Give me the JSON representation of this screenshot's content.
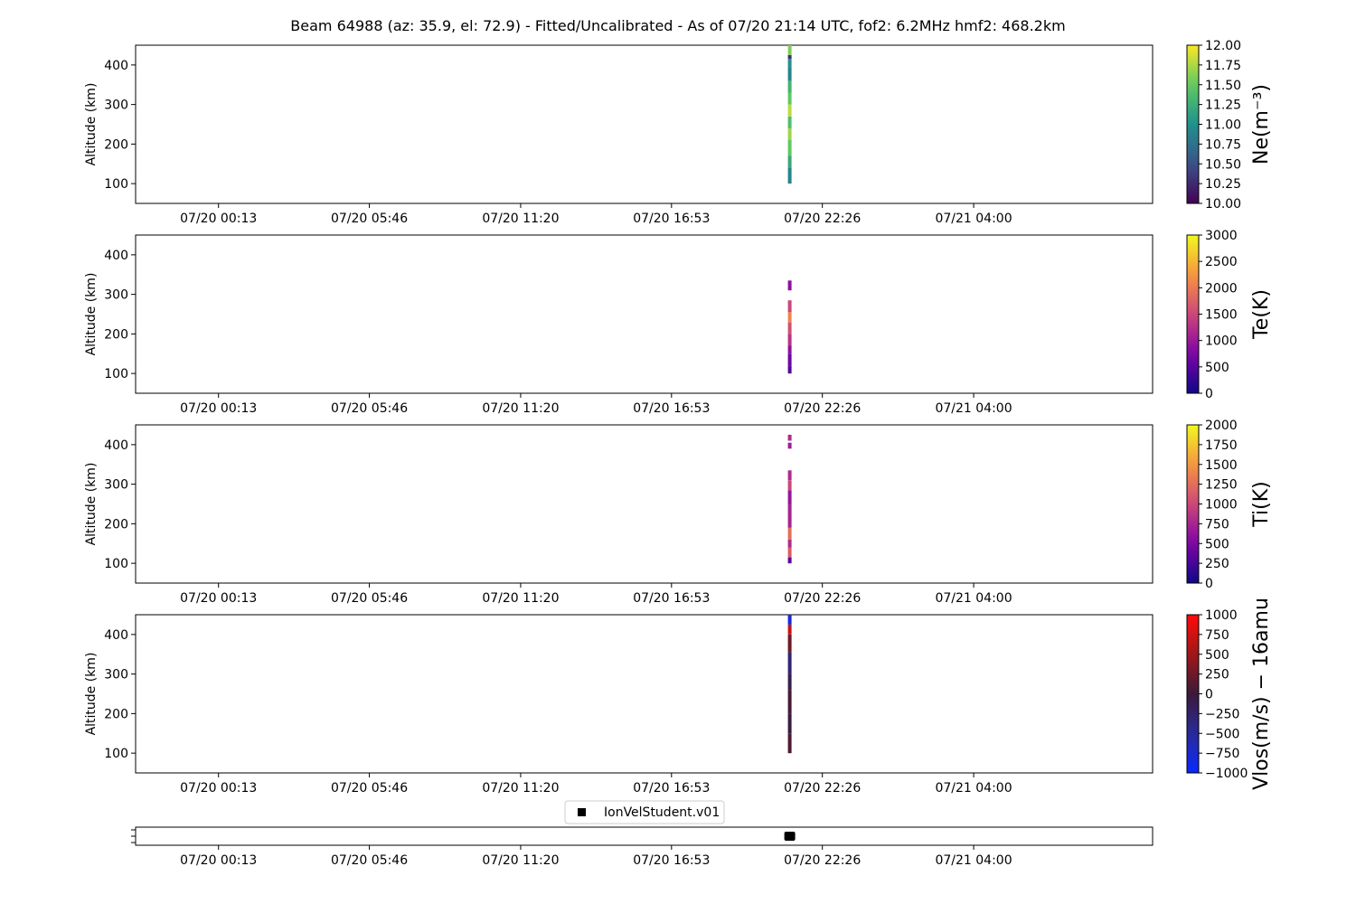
{
  "chart_data": {
    "type": "heatmap",
    "title": "Beam 64988 (az: 35.9, el: 72.9) - Fitted/Uncalibrated - As of 07/20 21:14 UTC, fof2: 6.2MHz  hmf2: 468.2km",
    "x_tick_labels": [
      "07/20 00:13",
      "07/20 05:46",
      "07/20 11:20",
      "07/20 16:53",
      "07/20 22:26",
      "07/21 04:00"
    ],
    "x_tick_minutes": [
      13,
      346,
      680,
      1013,
      1346,
      1680
    ],
    "x_range_minutes": [
      -170,
      2075
    ],
    "observation_minutes": 1274,
    "panels": [
      {
        "ylabel": "Altitude (km)",
        "ylim": [
          50,
          450
        ],
        "y_ticks": [
          100,
          200,
          300,
          400
        ],
        "colorbar_label": "Ne(m⁻³)",
        "colormap": "viridis",
        "clim": [
          10.0,
          12.0
        ],
        "cbar_ticks": [
          "10.00",
          "10.25",
          "10.50",
          "10.75",
          "11.00",
          "11.25",
          "11.50",
          "11.75",
          "12.00"
        ],
        "column": [
          {
            "alt": [
              100,
              140
            ],
            "value": 10.9
          },
          {
            "alt": [
              140,
              170
            ],
            "value": 11.2
          },
          {
            "alt": [
              170,
              210
            ],
            "value": 11.5
          },
          {
            "alt": [
              210,
              240
            ],
            "value": 11.7
          },
          {
            "alt": [
              240,
              270
            ],
            "value": 11.4
          },
          {
            "alt": [
              270,
              300
            ],
            "value": 11.8
          },
          {
            "alt": [
              300,
              330
            ],
            "value": 11.5
          },
          {
            "alt": [
              330,
              360
            ],
            "value": 11.3
          },
          {
            "alt": [
              360,
              395
            ],
            "value": 10.9
          },
          {
            "alt": [
              395,
              415
            ],
            "value": 11.0
          },
          {
            "alt": [
              415,
              425
            ],
            "value": 10.3
          },
          {
            "alt": [
              425,
              450
            ],
            "value": 11.6
          }
        ]
      },
      {
        "ylabel": "Altitude (km)",
        "ylim": [
          50,
          450
        ],
        "y_ticks": [
          100,
          200,
          300,
          400
        ],
        "colorbar_label": "Te(K)",
        "colormap": "plasma",
        "clim": [
          0,
          3000
        ],
        "cbar_ticks": [
          "0",
          "500",
          "1000",
          "1500",
          "2000",
          "2500",
          "3000"
        ],
        "column": [
          {
            "alt": [
              100,
              120
            ],
            "value": 500
          },
          {
            "alt": [
              120,
              150
            ],
            "value": 650
          },
          {
            "alt": [
              150,
              170
            ],
            "value": 900
          },
          {
            "alt": [
              170,
              200
            ],
            "value": 1300
          },
          {
            "alt": [
              200,
              230
            ],
            "value": 1600
          },
          {
            "alt": [
              230,
              255
            ],
            "value": 2100
          },
          {
            "alt": [
              255,
              285
            ],
            "value": 1500
          },
          {
            "alt": [
              310,
              335
            ],
            "value": 900
          }
        ]
      },
      {
        "ylabel": "Altitude (km)",
        "ylim": [
          50,
          450
        ],
        "y_ticks": [
          100,
          200,
          300,
          400
        ],
        "colorbar_label": "Ti(K)",
        "colormap": "plasma",
        "clim": [
          0,
          2000
        ],
        "cbar_ticks": [
          "0",
          "250",
          "500",
          "750",
          "1000",
          "1250",
          "1500",
          "1750",
          "2000"
        ],
        "column": [
          {
            "alt": [
              100,
              115
            ],
            "value": 350
          },
          {
            "alt": [
              115,
              140
            ],
            "value": 1150
          },
          {
            "alt": [
              140,
              160
            ],
            "value": 800
          },
          {
            "alt": [
              160,
              190
            ],
            "value": 1250
          },
          {
            "alt": [
              190,
              250
            ],
            "value": 750
          },
          {
            "alt": [
              250,
              285
            ],
            "value": 650
          },
          {
            "alt": [
              285,
              310
            ],
            "value": 1000
          },
          {
            "alt": [
              310,
              335
            ],
            "value": 800
          },
          {
            "alt": [
              390,
              405
            ],
            "value": 700
          },
          {
            "alt": [
              410,
              425
            ],
            "value": 800
          }
        ]
      },
      {
        "ylabel": "Altitude (km)",
        "ylim": [
          50,
          450
        ],
        "y_ticks": [
          100,
          200,
          300,
          400
        ],
        "colorbar_label": "Vlos(m/s) − 16amu",
        "colormap": "bwr-dark",
        "clim": [
          -1000,
          1000
        ],
        "cbar_ticks": [
          "−1000",
          "−750",
          "−500",
          "−250",
          "0",
          "250",
          "500",
          "750",
          "1000"
        ],
        "column": [
          {
            "alt": [
              100,
              150
            ],
            "value": 100
          },
          {
            "alt": [
              150,
              200
            ],
            "value": -50
          },
          {
            "alt": [
              200,
              260
            ],
            "value": 60
          },
          {
            "alt": [
              260,
              300
            ],
            "value": -120
          },
          {
            "alt": [
              300,
              355
            ],
            "value": -300
          },
          {
            "alt": [
              355,
              400
            ],
            "value": 250
          },
          {
            "alt": [
              400,
              425
            ],
            "value": 700
          },
          {
            "alt": [
              425,
              450
            ],
            "value": -800
          }
        ]
      }
    ],
    "legend": {
      "label": "IonVelStudent.v01",
      "placement": "upper center",
      "marker": "square",
      "color": "#000000"
    }
  }
}
